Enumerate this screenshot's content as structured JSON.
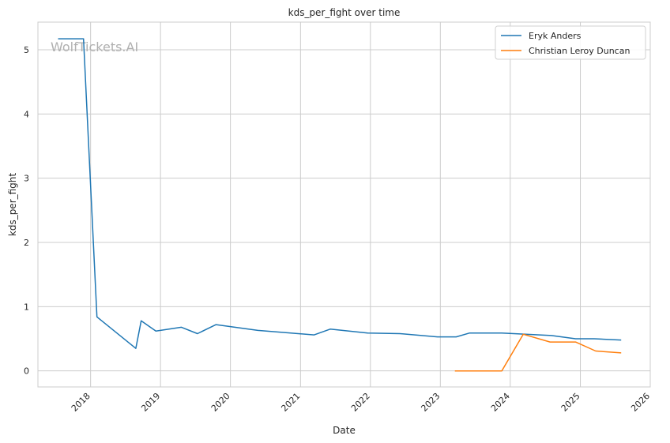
{
  "chart_data": {
    "type": "line",
    "title": "kds_per_fight over time",
    "xlabel": "Date",
    "ylabel": "kds_per_fight",
    "watermark": "WolfTickets.AI",
    "x_axis": "date",
    "xlim": [
      "2017-04-01",
      "2026-01-01"
    ],
    "ylim": [
      -0.25,
      5.43
    ],
    "x_ticks": [
      "2018",
      "2019",
      "2020",
      "2021",
      "2022",
      "2023",
      "2024",
      "2025",
      "2026"
    ],
    "y_ticks": [
      "0",
      "1",
      "2",
      "3",
      "4",
      "5"
    ],
    "grid": true,
    "legend_position": "top-right",
    "series": [
      {
        "name": "Eryk Anders",
        "color": "#1f77b4",
        "points": [
          [
            "2017-07-15",
            5.17
          ],
          [
            "2017-11-25",
            5.17
          ],
          [
            "2018-02-03",
            0.84
          ],
          [
            "2018-08-25",
            0.35
          ],
          [
            "2018-09-22",
            0.78
          ],
          [
            "2018-12-08",
            0.62
          ],
          [
            "2019-04-20",
            0.68
          ],
          [
            "2019-07-13",
            0.58
          ],
          [
            "2019-10-18",
            0.72
          ],
          [
            "2020-05-23",
            0.63
          ],
          [
            "2021-03-13",
            0.56
          ],
          [
            "2021-06-05",
            0.65
          ],
          [
            "2021-12-18",
            0.59
          ],
          [
            "2022-06-04",
            0.58
          ],
          [
            "2022-12-17",
            0.53
          ],
          [
            "2023-03-25",
            0.53
          ],
          [
            "2023-06-03",
            0.59
          ],
          [
            "2023-11-18",
            0.59
          ],
          [
            "2024-08-03",
            0.55
          ],
          [
            "2024-12-07",
            0.5
          ],
          [
            "2025-03-15",
            0.5
          ],
          [
            "2025-08-02",
            0.48
          ]
        ]
      },
      {
        "name": "Christian Leroy Duncan",
        "color": "#ff7f0e",
        "points": [
          [
            "2023-03-18",
            0.0
          ],
          [
            "2023-11-18",
            0.0
          ],
          [
            "2024-03-09",
            0.57
          ],
          [
            "2024-07-27",
            0.45
          ],
          [
            "2024-12-07",
            0.45
          ],
          [
            "2025-03-22",
            0.31
          ],
          [
            "2025-08-02",
            0.28
          ]
        ]
      }
    ]
  }
}
